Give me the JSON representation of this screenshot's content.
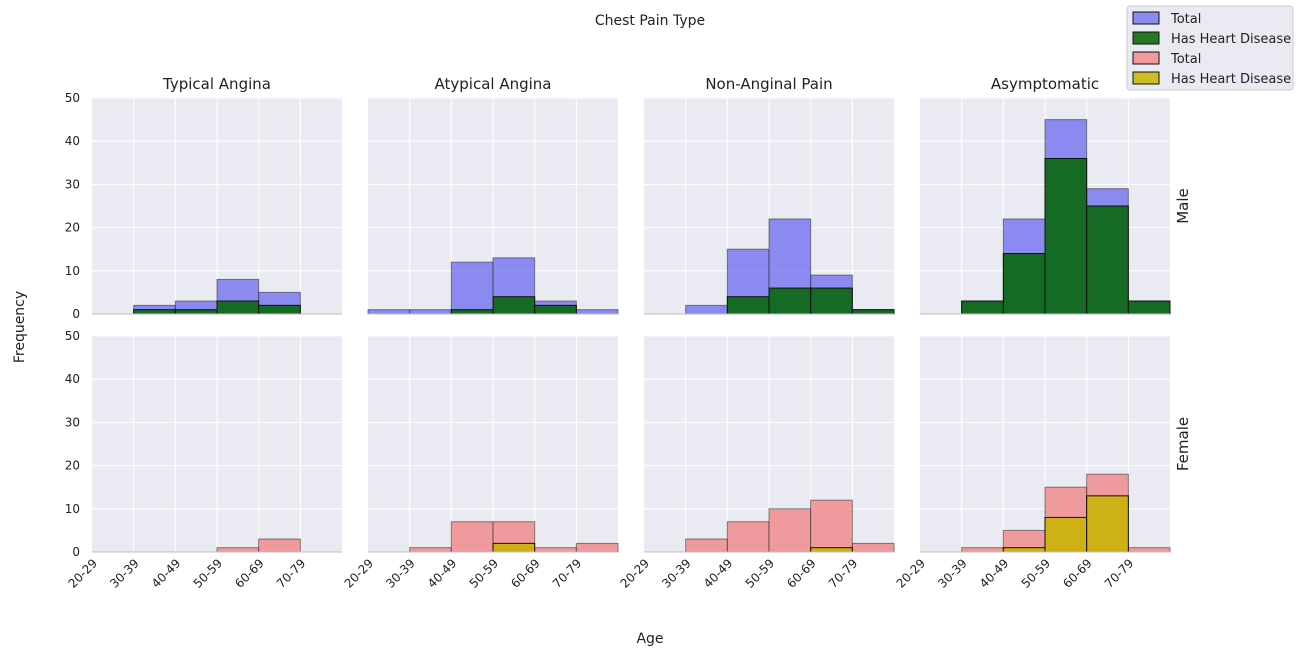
{
  "chart_data": {
    "type": "bar",
    "title": "Chest Pain Type",
    "xlabel": "Age",
    "ylabel": "Frequency",
    "ylim": [
      0,
      50
    ],
    "yticks": [
      0,
      10,
      20,
      30,
      40,
      50
    ],
    "grid": true,
    "legend_position": "top-right",
    "categories": [
      "20-29",
      "30-39",
      "40-49",
      "50-59",
      "60-69",
      "70-79"
    ],
    "columns": [
      "Typical Angina",
      "Atypical Angina",
      "Non-Anginal Pain",
      "Asymptomatic"
    ],
    "rows": [
      "Male",
      "Female"
    ],
    "legend": [
      {
        "label": "Total",
        "color": "#6a6af0"
      },
      {
        "label": "Has Heart Disease",
        "color": "#006400"
      },
      {
        "label": "Total",
        "color": "#f08080"
      },
      {
        "label": "Has Heart Disease",
        "color": "#c8b400"
      }
    ],
    "panels": [
      {
        "row": "Male",
        "column": "Typical Angina",
        "colors": [
          "#6a6af0",
          "#006400"
        ],
        "series": [
          {
            "name": "Total",
            "values": [
              0,
              2,
              3,
              8,
              5,
              0
            ]
          },
          {
            "name": "Has Heart Disease",
            "values": [
              0,
              1,
              1,
              3,
              2,
              0
            ]
          }
        ]
      },
      {
        "row": "Male",
        "column": "Atypical Angina",
        "colors": [
          "#6a6af0",
          "#006400"
        ],
        "series": [
          {
            "name": "Total",
            "values": [
              1,
              1,
              12,
              13,
              3,
              1
            ]
          },
          {
            "name": "Has Heart Disease",
            "values": [
              0,
              0,
              1,
              4,
              2,
              0
            ]
          }
        ]
      },
      {
        "row": "Male",
        "column": "Non-Anginal Pain",
        "colors": [
          "#6a6af0",
          "#006400"
        ],
        "series": [
          {
            "name": "Total",
            "values": [
              0,
              2,
              15,
              22,
              9,
              1
            ]
          },
          {
            "name": "Has Heart Disease",
            "values": [
              0,
              0,
              4,
              6,
              6,
              1
            ]
          }
        ]
      },
      {
        "row": "Male",
        "column": "Asymptomatic",
        "colors": [
          "#6a6af0",
          "#006400"
        ],
        "series": [
          {
            "name": "Total",
            "values": [
              0,
              3,
              22,
              45,
              29,
              3
            ]
          },
          {
            "name": "Has Heart Disease",
            "values": [
              0,
              3,
              14,
              36,
              25,
              3
            ]
          }
        ]
      },
      {
        "row": "Female",
        "column": "Typical Angina",
        "colors": [
          "#f08080",
          "#c8b400"
        ],
        "series": [
          {
            "name": "Total",
            "values": [
              0,
              0,
              0,
              1,
              3,
              0
            ]
          },
          {
            "name": "Has Heart Disease",
            "values": [
              0,
              0,
              0,
              0,
              0,
              0
            ]
          }
        ]
      },
      {
        "row": "Female",
        "column": "Atypical Angina",
        "colors": [
          "#f08080",
          "#c8b400"
        ],
        "series": [
          {
            "name": "Total",
            "values": [
              0,
              1,
              7,
              7,
              1,
              2
            ]
          },
          {
            "name": "Has Heart Disease",
            "values": [
              0,
              0,
              0,
              2,
              0,
              0
            ]
          }
        ]
      },
      {
        "row": "Female",
        "column": "Non-Anginal Pain",
        "colors": [
          "#f08080",
          "#c8b400"
        ],
        "series": [
          {
            "name": "Total",
            "values": [
              0,
              3,
              7,
              10,
              12,
              2
            ]
          },
          {
            "name": "Has Heart Disease",
            "values": [
              0,
              0,
              0,
              0,
              1,
              0
            ]
          }
        ]
      },
      {
        "row": "Female",
        "column": "Asymptomatic",
        "colors": [
          "#f08080",
          "#c8b400"
        ],
        "series": [
          {
            "name": "Total",
            "values": [
              0,
              1,
              5,
              15,
              18,
              1
            ]
          },
          {
            "name": "Has Heart Disease",
            "values": [
              0,
              0,
              1,
              8,
              13,
              0
            ]
          }
        ]
      }
    ]
  }
}
